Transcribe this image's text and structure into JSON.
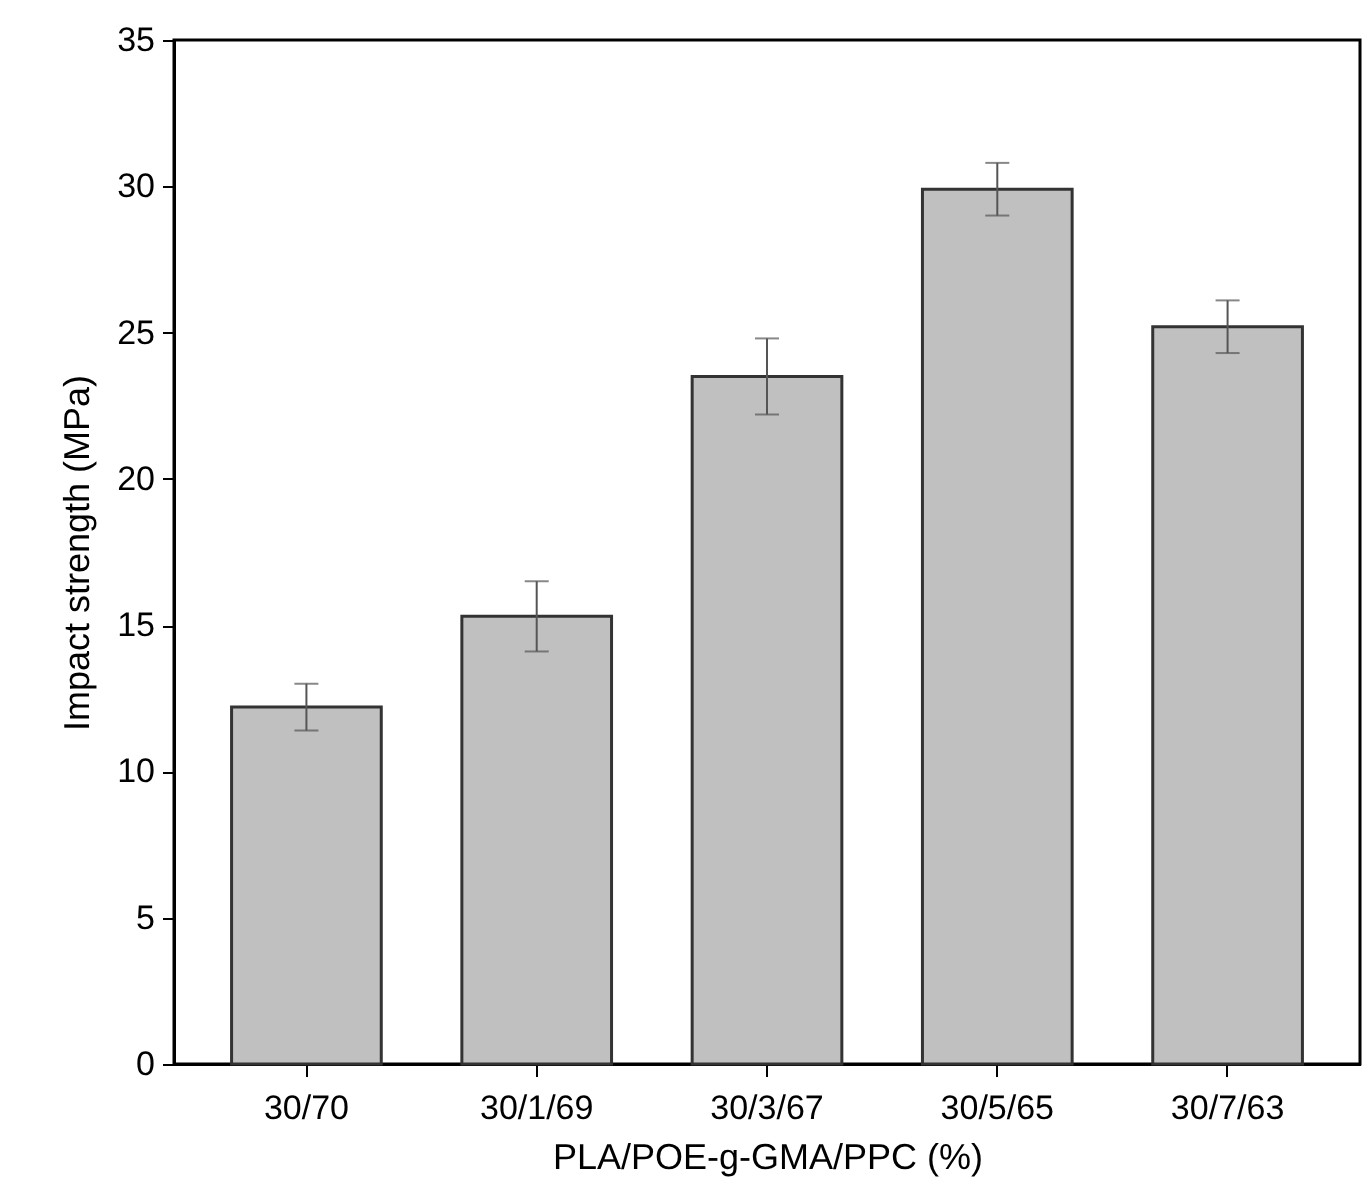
{
  "chart_data": {
    "type": "bar",
    "xlabel": "PLA/POE-g-GMA/PPC (%)",
    "ylabel": "Impact strength (MPa)",
    "categories": [
      "30/70",
      "30/1/69",
      "30/3/67",
      "30/5/65",
      "30/7/63"
    ],
    "values": [
      12.2,
      15.3,
      23.5,
      29.9,
      25.2
    ],
    "errors": [
      0.8,
      1.2,
      1.3,
      0.9,
      0.9
    ],
    "color": "#c0c0c0",
    "ylim": [
      0,
      35
    ],
    "yticks": [
      0,
      5,
      10,
      15,
      20,
      25,
      30,
      35
    ],
    "grid": false
  }
}
